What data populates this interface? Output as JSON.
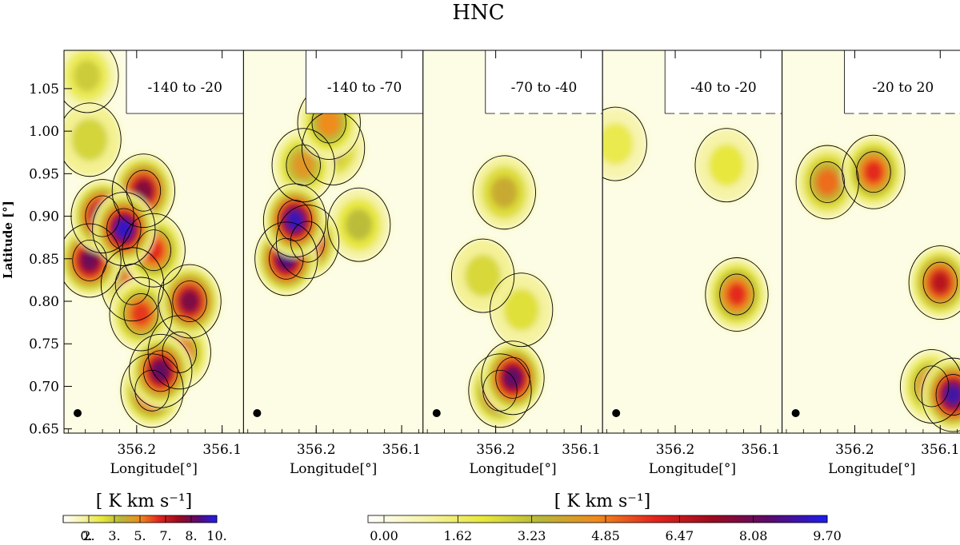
{
  "figure": {
    "title": "HNC",
    "ylabel": "Latitude [°]",
    "xlabel": "Longitude[°]",
    "colorbar_left": {
      "label": "[ K km s⁻¹]",
      "tick_labels": [
        "0.",
        "2.",
        "3.",
        "5.",
        "7.",
        "8.",
        "10."
      ]
    },
    "colorbar_right": {
      "label": "[ K km s⁻¹]",
      "tick_labels": [
        "0.00",
        "1.62",
        "3.23",
        "4.85",
        "6.47",
        "8.08",
        "9.70"
      ]
    }
  },
  "colors": {
    "colormap": [
      "#ffffff",
      "#f6f3a8",
      "#e7e73a",
      "#b7b73a",
      "#f08a1c",
      "#e2241e",
      "#9c0a1e",
      "#5a0a6e",
      "#1d1df0"
    ],
    "contour": "#000000",
    "beam": "#000000"
  },
  "chart_data": {
    "type": "heatmap",
    "quantity": "HNC integrated intensity",
    "units": "K km s^-1",
    "x_axis": {
      "label": "Longitude[°]",
      "range": [
        356.285,
        356.075
      ],
      "reversed": true,
      "ticks": [
        356.2,
        356.1
      ]
    },
    "y_axis": {
      "label": "Latitude [°]",
      "range": [
        0.645,
        1.095
      ],
      "ticks": [
        0.65,
        0.7,
        0.75,
        0.8,
        0.85,
        0.9,
        0.95,
        1.0,
        1.05
      ]
    },
    "panels": [
      {
        "label": "-140 to -20",
        "colorbar": "left",
        "vmax": 10,
        "features": [
          {
            "l": 356.215,
            "b": 0.885,
            "peak": 9.6
          },
          {
            "l": 356.24,
            "b": 0.9,
            "peak": 8.8
          },
          {
            "l": 356.255,
            "b": 0.848,
            "peak": 8.4
          },
          {
            "l": 356.192,
            "b": 0.93,
            "peak": 8.0
          },
          {
            "l": 356.18,
            "b": 0.86,
            "peak": 6.2
          },
          {
            "l": 356.205,
            "b": 0.82,
            "peak": 5.5
          },
          {
            "l": 356.195,
            "b": 0.785,
            "peak": 6.0
          },
          {
            "l": 356.138,
            "b": 0.8,
            "peak": 8.1
          },
          {
            "l": 356.172,
            "b": 0.718,
            "peak": 8.6
          },
          {
            "l": 356.182,
            "b": 0.695,
            "peak": 7.6
          },
          {
            "l": 356.15,
            "b": 0.74,
            "peak": 5.8
          },
          {
            "l": 356.258,
            "b": 1.065,
            "peak": 3.2
          },
          {
            "l": 356.255,
            "b": 0.99,
            "peak": 3.0
          }
        ]
      },
      {
        "label": "-140 to -70",
        "colorbar": "right",
        "vmax": 9.7,
        "features": [
          {
            "l": 356.225,
            "b": 0.895,
            "peak": 9.2
          },
          {
            "l": 356.21,
            "b": 0.87,
            "peak": 8.0
          },
          {
            "l": 356.235,
            "b": 0.85,
            "peak": 8.6
          },
          {
            "l": 356.215,
            "b": 0.96,
            "peak": 4.5
          },
          {
            "l": 356.18,
            "b": 0.98,
            "peak": 4.0
          },
          {
            "l": 356.185,
            "b": 1.01,
            "peak": 4.8
          },
          {
            "l": 356.15,
            "b": 0.89,
            "peak": 3.5
          }
        ]
      },
      {
        "label": "-70 to -40",
        "colorbar": "right",
        "vmax": 9.7,
        "features": [
          {
            "l": 356.18,
            "b": 0.71,
            "peak": 8.4
          },
          {
            "l": 356.195,
            "b": 0.695,
            "peak": 7.2
          },
          {
            "l": 356.19,
            "b": 0.928,
            "peak": 4.0
          },
          {
            "l": 356.215,
            "b": 0.83,
            "peak": 2.8
          },
          {
            "l": 356.17,
            "b": 0.79,
            "peak": 2.6
          }
        ]
      },
      {
        "label": "-40 to -20",
        "colorbar": "right",
        "vmax": 9.7,
        "features": [
          {
            "l": 356.128,
            "b": 0.808,
            "peak": 6.0
          },
          {
            "l": 356.14,
            "b": 0.96,
            "peak": 2.4
          },
          {
            "l": 356.27,
            "b": 0.985,
            "peak": 2.2
          }
        ]
      },
      {
        "label": "-20 to 20",
        "colorbar": "right",
        "vmax": 9.7,
        "features": [
          {
            "l": 356.178,
            "b": 0.952,
            "peak": 6.0
          },
          {
            "l": 356.232,
            "b": 0.94,
            "peak": 5.2
          },
          {
            "l": 356.1,
            "b": 0.822,
            "peak": 6.8
          },
          {
            "l": 356.085,
            "b": 0.69,
            "peak": 9.0
          },
          {
            "l": 356.11,
            "b": 0.7,
            "peak": 5.5
          }
        ]
      }
    ]
  }
}
